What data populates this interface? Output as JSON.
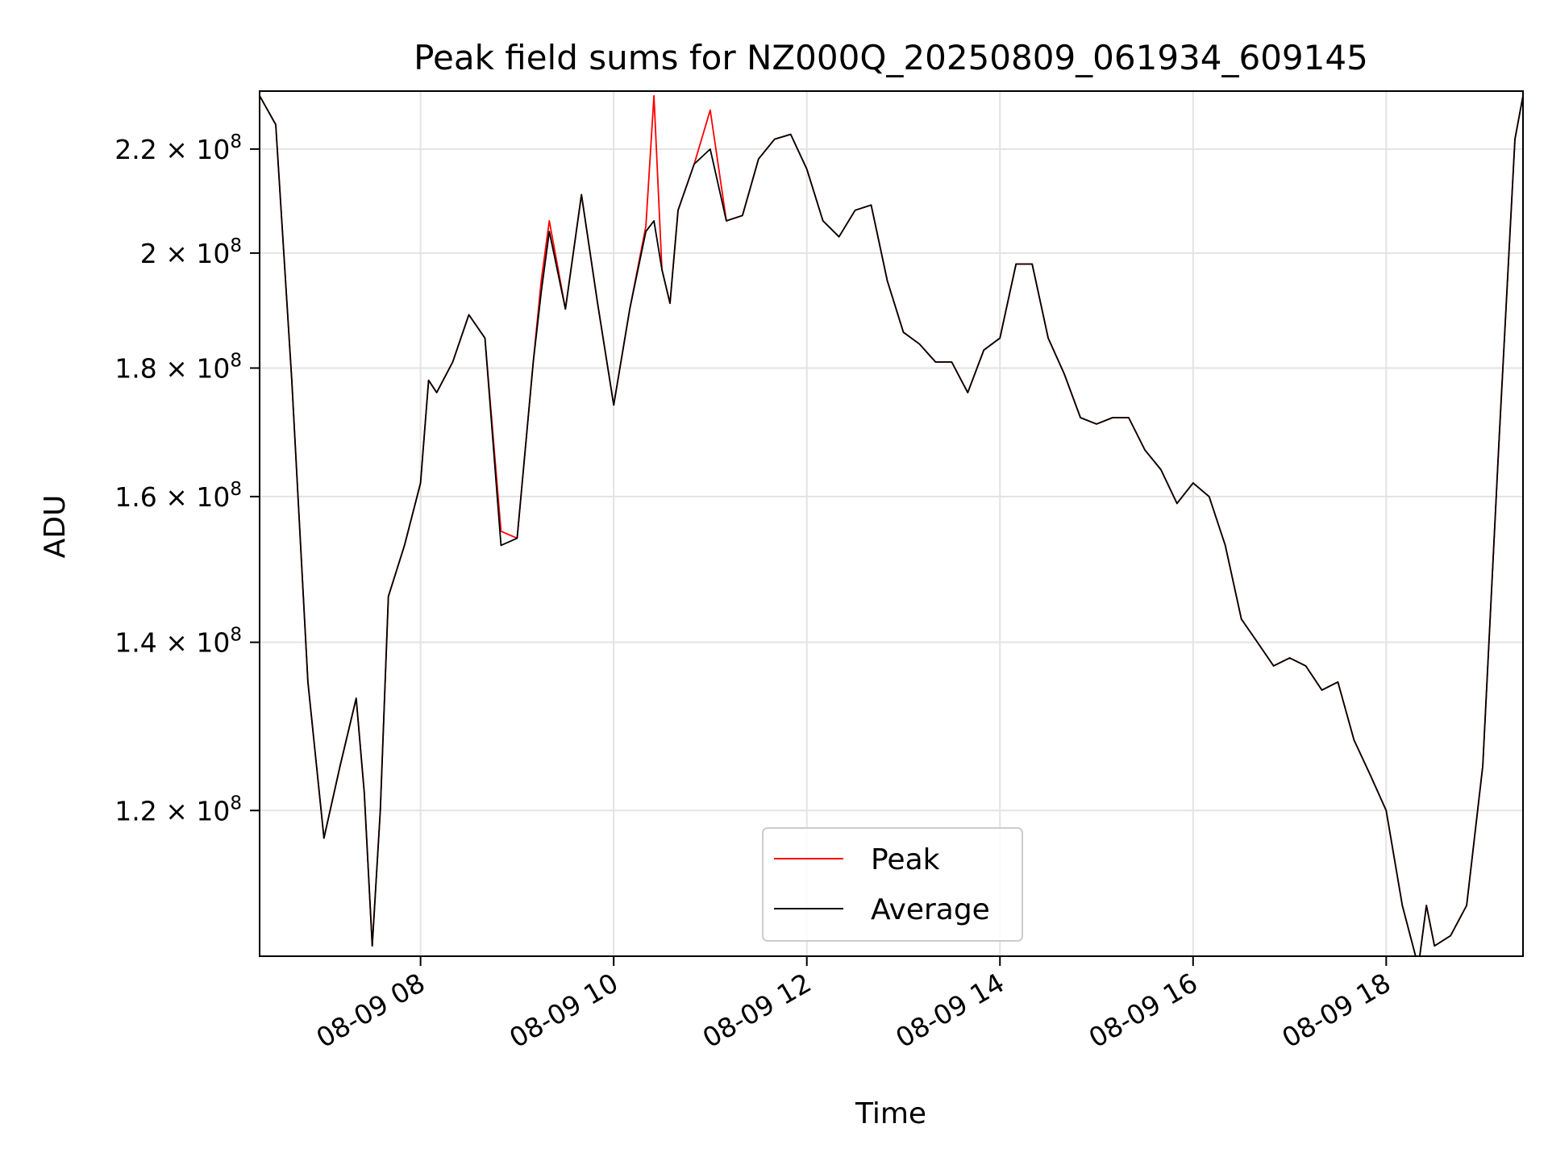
{
  "chart_data": {
    "type": "line",
    "title": "Peak field sums for NZ000Q_20250809_061934_609145",
    "xlabel": "Time",
    "ylabel": "ADU",
    "y_scale": "log",
    "ylim": [
      105000000,
      232000000
    ],
    "xlim": [
      "2025-08-09 06:20",
      "2025-08-09 19:25"
    ],
    "grid": true,
    "legend_position": "lower center",
    "x_ticks": [
      {
        "value": "2025-08-09 08:00",
        "label": "08-09 08"
      },
      {
        "value": "2025-08-09 10:00",
        "label": "08-09 10"
      },
      {
        "value": "2025-08-09 12:00",
        "label": "08-09 12"
      },
      {
        "value": "2025-08-09 14:00",
        "label": "08-09 14"
      },
      {
        "value": "2025-08-09 16:00",
        "label": "08-09 16"
      },
      {
        "value": "2025-08-09 18:00",
        "label": "08-09 18"
      }
    ],
    "y_ticks": [
      {
        "value": 120000000,
        "mantissa": "1.2",
        "exponent": "8"
      },
      {
        "value": 140000000,
        "mantissa": "1.4",
        "exponent": "8"
      },
      {
        "value": 160000000,
        "mantissa": "1.6",
        "exponent": "8"
      },
      {
        "value": 180000000,
        "mantissa": "1.8",
        "exponent": "8"
      },
      {
        "value": 200000000,
        "mantissa": "2",
        "exponent": "8"
      },
      {
        "value": 220000000,
        "mantissa": "2.2",
        "exponent": "8"
      }
    ],
    "x": [
      "2025-08-09 06:20",
      "2025-08-09 06:30",
      "2025-08-09 06:40",
      "2025-08-09 06:50",
      "2025-08-09 07:00",
      "2025-08-09 07:10",
      "2025-08-09 07:20",
      "2025-08-09 07:25",
      "2025-08-09 07:30",
      "2025-08-09 07:35",
      "2025-08-09 07:40",
      "2025-08-09 07:50",
      "2025-08-09 08:00",
      "2025-08-09 08:05",
      "2025-08-09 08:10",
      "2025-08-09 08:20",
      "2025-08-09 08:30",
      "2025-08-09 08:40",
      "2025-08-09 08:50",
      "2025-08-09 09:00",
      "2025-08-09 09:10",
      "2025-08-09 09:15",
      "2025-08-09 09:20",
      "2025-08-09 09:30",
      "2025-08-09 09:40",
      "2025-08-09 09:50",
      "2025-08-09 10:00",
      "2025-08-09 10:10",
      "2025-08-09 10:20",
      "2025-08-09 10:25",
      "2025-08-09 10:30",
      "2025-08-09 10:35",
      "2025-08-09 10:40",
      "2025-08-09 10:50",
      "2025-08-09 11:00",
      "2025-08-09 11:10",
      "2025-08-09 11:20",
      "2025-08-09 11:30",
      "2025-08-09 11:40",
      "2025-08-09 11:50",
      "2025-08-09 12:00",
      "2025-08-09 12:10",
      "2025-08-09 12:20",
      "2025-08-09 12:30",
      "2025-08-09 12:40",
      "2025-08-09 12:50",
      "2025-08-09 13:00",
      "2025-08-09 13:10",
      "2025-08-09 13:20",
      "2025-08-09 13:30",
      "2025-08-09 13:40",
      "2025-08-09 13:50",
      "2025-08-09 14:00",
      "2025-08-09 14:10",
      "2025-08-09 14:20",
      "2025-08-09 14:30",
      "2025-08-09 14:40",
      "2025-08-09 14:50",
      "2025-08-09 15:00",
      "2025-08-09 15:10",
      "2025-08-09 15:20",
      "2025-08-09 15:30",
      "2025-08-09 15:40",
      "2025-08-09 15:50",
      "2025-08-09 16:00",
      "2025-08-09 16:10",
      "2025-08-09 16:20",
      "2025-08-09 16:30",
      "2025-08-09 16:40",
      "2025-08-09 16:50",
      "2025-08-09 17:00",
      "2025-08-09 17:10",
      "2025-08-09 17:20",
      "2025-08-09 17:30",
      "2025-08-09 17:40",
      "2025-08-09 17:50",
      "2025-08-09 18:00",
      "2025-08-09 18:10",
      "2025-08-09 18:20",
      "2025-08-09 18:25",
      "2025-08-09 18:30",
      "2025-08-09 18:40",
      "2025-08-09 18:50",
      "2025-08-09 19:00",
      "2025-08-09 19:10",
      "2025-08-09 19:20",
      "2025-08-09 19:25"
    ],
    "series": [
      {
        "name": "Peak",
        "color": "#ff0000",
        "values": [
          231000000,
          225000000,
          178000000,
          135000000,
          117000000,
          125000000,
          133000000,
          122000000,
          106000000,
          120000000,
          146000000,
          153000000,
          162000000,
          178000000,
          176000000,
          181000000,
          189000000,
          185000000,
          155000000,
          154000000,
          181000000,
          195000000,
          206000000,
          190000000,
          211000000,
          191000000,
          174000000,
          190000000,
          205000000,
          231000000,
          197000000,
          191000000,
          208000000,
          217000000,
          228000000,
          206000000,
          207000000,
          218000000,
          222000000,
          223000000,
          216000000,
          206000000,
          203000000,
          208000000,
          209000000,
          195000000,
          186000000,
          184000000,
          181000000,
          181000000,
          176000000,
          183000000,
          185000000,
          198000000,
          198000000,
          185000000,
          179000000,
          172000000,
          171000000,
          172000000,
          172000000,
          167000000,
          164000000,
          159000000,
          162000000,
          160000000,
          153000000,
          143000000,
          140000000,
          137000000,
          138000000,
          137000000,
          134000000,
          135000000,
          128000000,
          124000000,
          120000000,
          110000000,
          104000000,
          110000000,
          106000000,
          107000000,
          110000000,
          125000000,
          168000000,
          222000000,
          231000000
        ]
      },
      {
        "name": "Average",
        "color": "#000000",
        "values": [
          231000000,
          225000000,
          178000000,
          135000000,
          117000000,
          125000000,
          133000000,
          122000000,
          106000000,
          120000000,
          146000000,
          153000000,
          162000000,
          178000000,
          176000000,
          181000000,
          189000000,
          185000000,
          153000000,
          154000000,
          181000000,
          193000000,
          204000000,
          190000000,
          211000000,
          191000000,
          174000000,
          190000000,
          204000000,
          206000000,
          197000000,
          191000000,
          208000000,
          217000000,
          220000000,
          206000000,
          207000000,
          218000000,
          222000000,
          223000000,
          216000000,
          206000000,
          203000000,
          208000000,
          209000000,
          195000000,
          186000000,
          184000000,
          181000000,
          181000000,
          176000000,
          183000000,
          185000000,
          198000000,
          198000000,
          185000000,
          179000000,
          172000000,
          171000000,
          172000000,
          172000000,
          167000000,
          164000000,
          159000000,
          162000000,
          160000000,
          153000000,
          143000000,
          140000000,
          137000000,
          138000000,
          137000000,
          134000000,
          135000000,
          128000000,
          124000000,
          120000000,
          110000000,
          104000000,
          110000000,
          106000000,
          107000000,
          110000000,
          125000000,
          168000000,
          222000000,
          231000000
        ]
      }
    ]
  }
}
